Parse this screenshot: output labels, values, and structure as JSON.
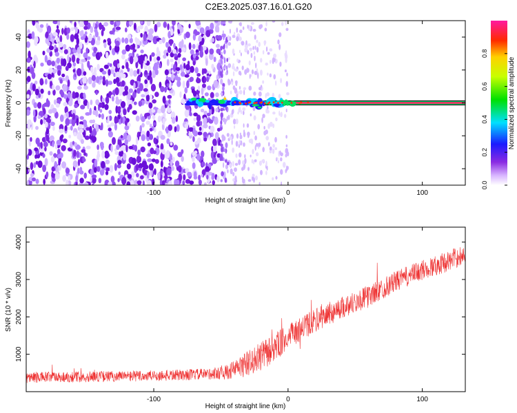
{
  "title": "C2E3.2025.037.16.01.G20",
  "colors": {
    "snr_line": "#ee3030",
    "spectrogram_noise": "#7a22e0",
    "frame": "#000000"
  },
  "chart_data": [
    {
      "type": "heatmap",
      "xlabel": "Height of straight line (km)",
      "ylabel": "Frequency (Hz)",
      "xlim": [
        -195,
        132
      ],
      "ylim": [
        -50,
        50
      ],
      "x_ticks": [
        "-100",
        "0",
        "100"
      ],
      "y_ticks": [
        "-40",
        "-20",
        "0",
        "20",
        "40"
      ],
      "colorbar": {
        "label": "Normalized spectral amplitude",
        "range": [
          0,
          1
        ],
        "ticks": [
          "0.0",
          "0.2",
          "0.4",
          "0.6",
          "0.8"
        ],
        "colormap": "rainbow"
      },
      "features": {
        "noise_region_x": [
          -195,
          -50
        ],
        "fading_noise_x": [
          -50,
          0
        ],
        "signal_line_frequency_hz": 0,
        "signal_start_x": -75,
        "signal_amplitude_range": [
          0.2,
          1.0
        ]
      }
    },
    {
      "type": "line",
      "xlabel": "Height of straight line (km)",
      "ylabel": "SNR (10 * v/v)",
      "xlim": [
        -195,
        132
      ],
      "ylim": [
        0,
        4400
      ],
      "x_ticks": [
        "-100",
        "0",
        "100"
      ],
      "y_ticks": [
        "1000",
        "2000",
        "3000",
        "4000"
      ],
      "series": [
        {
          "x": [
            -195,
            -150,
            -100,
            -60,
            -45,
            -30,
            -15,
            0,
            20,
            40,
            60,
            80,
            100,
            120,
            132
          ],
          "mean": [
            380,
            400,
            420,
            470,
            520,
            750,
            1050,
            1450,
            1900,
            2250,
            2550,
            2950,
            3250,
            3500,
            3700
          ],
          "spread": [
            300,
            300,
            300,
            300,
            400,
            700,
            800,
            700,
            650,
            600,
            600,
            550,
            550,
            550,
            550
          ]
        }
      ]
    }
  ]
}
